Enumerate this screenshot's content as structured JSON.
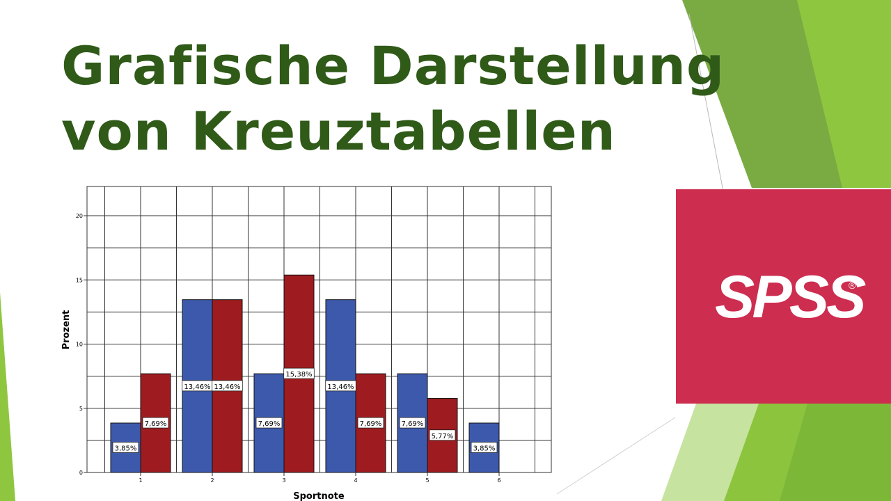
{
  "slide": {
    "title_line1": "Grafische Darstellung",
    "title_line2": "von Kreuztabellen",
    "logo_text": "SPSS",
    "logo_reg": "®",
    "colors": {
      "title": "#2f5a18",
      "logo_bg": "#cd2d4f",
      "series_blue": "#3d59ab",
      "series_red": "#9e1c1f"
    }
  },
  "chart_data": {
    "type": "bar",
    "categories": [
      "1",
      "2",
      "3",
      "4",
      "5",
      "6"
    ],
    "series": [
      {
        "values": [
          3.85,
          13.46,
          7.69,
          13.46,
          7.69,
          3.85
        ],
        "labels": [
          "3,85%",
          "13,46%",
          "7,69%",
          "13,46%",
          "7,69%",
          "3,85%"
        ],
        "color": "#3d59ab"
      },
      {
        "values": [
          7.69,
          13.46,
          15.38,
          7.69,
          5.77,
          null
        ],
        "labels": [
          "7,69%",
          "13,46%",
          "15,38%",
          "7,69%",
          "5,77%",
          null
        ],
        "color": "#9e1c1f"
      }
    ],
    "xlabel": "Sportnote",
    "ylabel": "Prozent",
    "ylim": [
      0,
      20
    ],
    "yticks": [
      "0",
      "5",
      "10",
      "15",
      "20"
    ],
    "grid": true
  }
}
